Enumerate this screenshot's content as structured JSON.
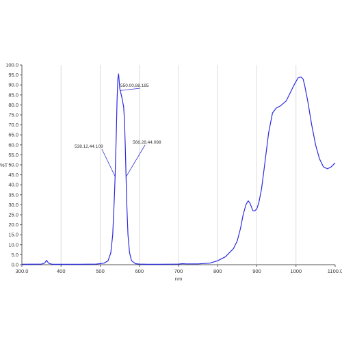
{
  "chart_data": {
    "type": "line",
    "title": "",
    "xlabel": "nm",
    "ylabel": "%T",
    "xlim": [
      300,
      1100
    ],
    "ylim": [
      0,
      100
    ],
    "x_ticks": [
      "300.0",
      "400",
      "500",
      "600",
      "700",
      "800",
      "900",
      "1000",
      "1100.0"
    ],
    "y_ticks": [
      "0.0",
      "5.0",
      "10.0",
      "15.0",
      "20.0",
      "25.0",
      "30.0",
      "35.0",
      "40.0",
      "45.0",
      "50.0",
      "55.0",
      "60.0",
      "65.0",
      "70.0",
      "75.0",
      "80.0",
      "85.0",
      "90.0",
      "95.0",
      "100.0"
    ],
    "grid": "vertical",
    "series": [
      {
        "color": "#2a2ae0",
        "x": [
          300,
          350,
          358,
          363,
          368,
          375,
          380,
          450,
          490,
          510,
          520,
          527,
          532,
          536,
          538,
          541,
          543,
          545,
          547,
          550,
          555,
          560,
          562,
          564,
          566,
          568,
          571,
          575,
          580,
          590,
          600,
          620,
          650,
          700,
          710,
          720,
          750,
          780,
          800,
          820,
          840,
          850,
          858,
          865,
          872,
          878,
          882,
          886,
          890,
          895,
          900,
          905,
          912,
          920,
          930,
          940,
          950,
          960,
          975,
          985,
          995,
          1005,
          1012,
          1018,
          1022,
          1030,
          1040,
          1050,
          1060,
          1070,
          1080,
          1090,
          1100
        ],
        "y": [
          0.2,
          0.3,
          0.8,
          2.2,
          0.8,
          0.3,
          0.2,
          0.2,
          0.3,
          0.8,
          2,
          6,
          15,
          33,
          44.1,
          65,
          82,
          93,
          95.5,
          88.2,
          84,
          79,
          72,
          60,
          44.1,
          30,
          15,
          6,
          2,
          0.5,
          0.3,
          0.2,
          0.2,
          0.3,
          0.5,
          0.4,
          0.4,
          0.8,
          2,
          4,
          8,
          12,
          18,
          25,
          30,
          32,
          31,
          29,
          27,
          27,
          28,
          31,
          38,
          50,
          66,
          76,
          78.5,
          79.5,
          82,
          86,
          90,
          93.5,
          94,
          93,
          90,
          82,
          70,
          60,
          53,
          49,
          48,
          49,
          51
        ]
      }
    ],
    "annotations": [
      {
        "text": "538.12,44.109",
        "x": 538.12,
        "y": 44.109
      },
      {
        "text": "550.00,88.185",
        "x": 550.0,
        "y": 88.185
      },
      {
        "text": "566.28,44.098",
        "x": 566.28,
        "y": 44.098
      }
    ]
  }
}
